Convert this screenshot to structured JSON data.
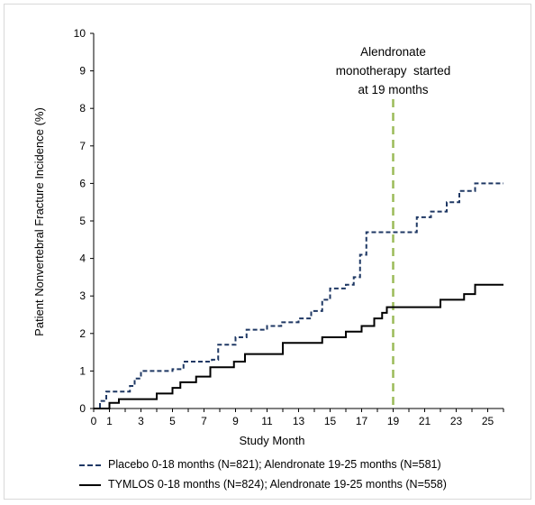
{
  "chart_data": {
    "type": "line",
    "step": true,
    "ylabel": "Patient Nonvertebral  Fracture Incidence (%)",
    "xlabel": "Study Month",
    "ylim": [
      0,
      10
    ],
    "xlim": [
      0,
      26
    ],
    "y_ticks": [
      "0",
      "1",
      "2",
      "3",
      "4",
      "5",
      "6",
      "7",
      "8",
      "9",
      "10"
    ],
    "x_ticks": [
      {
        "value": 0,
        "label": "0"
      },
      {
        "value": 1,
        "label": "1"
      },
      {
        "value": 3,
        "label": "3"
      },
      {
        "value": 5,
        "label": "5"
      },
      {
        "value": 7,
        "label": "7"
      },
      {
        "value": 9,
        "label": "9"
      },
      {
        "value": 11,
        "label": "11"
      },
      {
        "value": 13,
        "label": "13"
      },
      {
        "value": 15,
        "label": "15"
      },
      {
        "value": 17,
        "label": "17"
      },
      {
        "value": 19,
        "label": "19"
      },
      {
        "value": 21,
        "label": "21"
      },
      {
        "value": 23,
        "label": "23"
      },
      {
        "value": 25,
        "label": "25"
      }
    ],
    "annotation": {
      "x": 19,
      "lines": [
        "Alendronate",
        "monotherapy  started",
        "at 19 months"
      ],
      "color": "#9bbb59"
    },
    "series": [
      {
        "name": "Placebo 0-18  months (N=821);  Alendronate 19-25  months (N=581)",
        "legend_marker": "- -",
        "style": "dashed",
        "color": "#1f3864",
        "points": [
          [
            0,
            0
          ],
          [
            0.4,
            0.2
          ],
          [
            0.8,
            0.45
          ],
          [
            2.3,
            0.6
          ],
          [
            2.6,
            0.8
          ],
          [
            3.0,
            1.0
          ],
          [
            5.0,
            1.05
          ],
          [
            5.7,
            1.25
          ],
          [
            7.5,
            1.3
          ],
          [
            7.9,
            1.7
          ],
          [
            9.0,
            1.9
          ],
          [
            9.7,
            2.1
          ],
          [
            11.0,
            2.2
          ],
          [
            11.9,
            2.3
          ],
          [
            13.0,
            2.4
          ],
          [
            13.8,
            2.6
          ],
          [
            14.5,
            2.9
          ],
          [
            15.0,
            3.2
          ],
          [
            16.0,
            3.3
          ],
          [
            16.5,
            3.5
          ],
          [
            16.9,
            4.1
          ],
          [
            17.3,
            4.7
          ],
          [
            19.0,
            4.7
          ],
          [
            20.5,
            5.1
          ],
          [
            21.4,
            5.25
          ],
          [
            22.4,
            5.5
          ],
          [
            23.2,
            5.8
          ],
          [
            24.2,
            6.0
          ],
          [
            26.0,
            6.0
          ]
        ]
      },
      {
        "name": "TYMLOS  0-18 months (N=824);  Alendronate 19-25  months (N=558)",
        "legend_marker": "—",
        "style": "solid",
        "color": "#000000",
        "points": [
          [
            0,
            0
          ],
          [
            1.0,
            0.15
          ],
          [
            1.6,
            0.25
          ],
          [
            4.0,
            0.4
          ],
          [
            5.0,
            0.55
          ],
          [
            5.5,
            0.7
          ],
          [
            6.5,
            0.85
          ],
          [
            7.4,
            1.1
          ],
          [
            8.9,
            1.25
          ],
          [
            9.6,
            1.45
          ],
          [
            12.0,
            1.75
          ],
          [
            14.5,
            1.9
          ],
          [
            16.0,
            2.05
          ],
          [
            17.0,
            2.2
          ],
          [
            17.8,
            2.4
          ],
          [
            18.3,
            2.55
          ],
          [
            18.6,
            2.7
          ],
          [
            22.0,
            2.9
          ],
          [
            23.5,
            3.05
          ],
          [
            24.2,
            3.3
          ],
          [
            26.0,
            3.3
          ]
        ]
      }
    ]
  }
}
